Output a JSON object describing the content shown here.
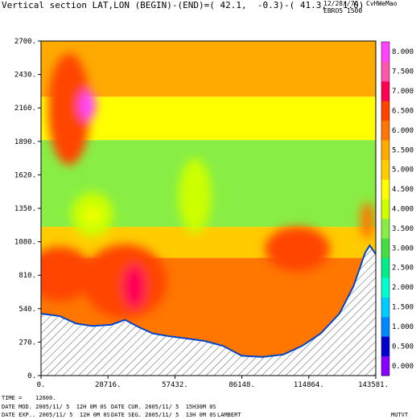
{
  "header": {
    "title": "Vertical section LAT,LON (BEGIN)-(END)=( 42.1,  -0.3)-( 41.3,   1.0)",
    "date": "12/28//7C",
    "user": "CvHWeMao",
    "code": "EBRO5 1500"
  },
  "footer": {
    "time": "TIME =    12600.",
    "date_mod": "DATE MOD. 2005/11/ 5  12H 0M 0S",
    "date_cur": "DATE CUR. 2005/11/ 5  15H30M 0S",
    "date_exp": "DATE EXP.. 2005/11/ 5  12H 0M 0S",
    "date_seg": "DATE SEG. 2005/11/ 5  13H 0M 0S",
    "projection": "LAMBERT",
    "label_right": "MUTVT"
  },
  "colors": {
    "levels": [
      "#8800ff",
      "#0000cc",
      "#0088ff",
      "#00ccff",
      "#00ffcc",
      "#00ee88",
      "#44dd44",
      "#88ee44",
      "#ccff00",
      "#ffff00",
      "#ffcc00",
      "#ffaa00",
      "#ff7700",
      "#ff4400",
      "#ff0055",
      "#ff55aa",
      "#ff44ff"
    ],
    "terrain_hatch": "#555555"
  },
  "chart_data": {
    "type": "heatmap",
    "title": "Vertical section LAT,LON (BEGIN)-(END)=( 42.1,  -0.3)-( 41.3,   1.0)",
    "xlabel": "",
    "ylabel": "",
    "x_ticks": [
      "0.",
      "28716.",
      "57432.",
      "86148.",
      "114864.",
      "143581."
    ],
    "x_tick_values": [
      0,
      28716,
      57432,
      86148,
      114864,
      143581
    ],
    "y_ticks": [
      "0.",
      "270.",
      "540.",
      "810.",
      "1080.",
      "1350.",
      "1620.",
      "1890.",
      "2160.",
      "2430.",
      "2700."
    ],
    "y_tick_values": [
      0,
      270,
      540,
      810,
      1080,
      1350,
      1620,
      1890,
      2160,
      2430,
      2700
    ],
    "xlim": [
      0,
      143581
    ],
    "ylim": [
      0,
      2700
    ],
    "colorbar_labels": [
      "0.000",
      "0.500",
      "1.000",
      "1.500",
      "2.000",
      "2.500",
      "3.000",
      "3.500",
      "4.000",
      "4.500",
      "5.000",
      "5.500",
      "6.000",
      "6.500",
      "7.000",
      "7.500",
      "8.000"
    ],
    "colorbar_values": [
      0.0,
      0.5,
      1.0,
      1.5,
      2.0,
      2.5,
      3.0,
      3.5,
      4.0,
      4.5,
      5.0,
      5.5,
      6.0,
      6.5,
      7.0,
      7.5,
      8.0
    ],
    "terrain": [
      [
        0,
        500
      ],
      [
        8000,
        480
      ],
      [
        15000,
        420
      ],
      [
        22000,
        400
      ],
      [
        30000,
        410
      ],
      [
        36000,
        450
      ],
      [
        42000,
        390
      ],
      [
        48000,
        340
      ],
      [
        54000,
        320
      ],
      [
        62000,
        300
      ],
      [
        70000,
        280
      ],
      [
        78000,
        240
      ],
      [
        86148,
        160
      ],
      [
        95000,
        150
      ],
      [
        104000,
        170
      ],
      [
        112000,
        240
      ],
      [
        120000,
        340
      ],
      [
        128000,
        500
      ],
      [
        134000,
        720
      ],
      [
        139000,
        990
      ],
      [
        141000,
        1050
      ],
      [
        143581,
        980
      ]
    ],
    "features": [
      {
        "x": 12000,
        "y": 2150,
        "value": 6.5,
        "rx": 9000,
        "ry": 450
      },
      {
        "x": 20000,
        "y": 2180,
        "value": 7.8,
        "rx": 3500,
        "ry": 120
      },
      {
        "x": 8000,
        "y": 820,
        "value": 6.5,
        "rx": 14000,
        "ry": 220
      },
      {
        "x": 36000,
        "y": 760,
        "value": 6.5,
        "rx": 18000,
        "ry": 300
      },
      {
        "x": 40000,
        "y": 720,
        "value": 7.2,
        "rx": 5000,
        "ry": 180
      },
      {
        "x": 22000,
        "y": 1300,
        "value": 3.8,
        "rx": 9000,
        "ry": 180
      },
      {
        "x": 22000,
        "y": 1290,
        "value": 4.6,
        "rx": 3000,
        "ry": 50
      },
      {
        "x": 66000,
        "y": 1450,
        "value": 3.8,
        "rx": 7000,
        "ry": 300
      },
      {
        "x": 110000,
        "y": 1020,
        "value": 6.5,
        "rx": 14000,
        "ry": 180
      },
      {
        "x": 140000,
        "y": 1250,
        "value": 6.2,
        "rx": 3000,
        "ry": 150
      }
    ]
  }
}
